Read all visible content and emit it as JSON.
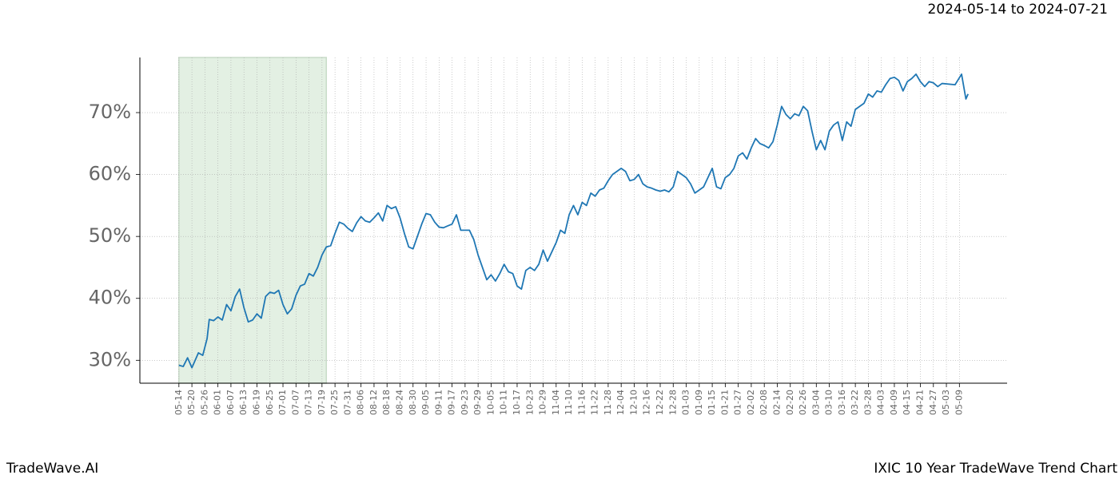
{
  "chart_data": {
    "type": "line",
    "date_range": "2024-05-14 to 2024-07-21",
    "brand": "TradeWave.AI",
    "title": "IXIC 10 Year TradeWave Trend Chart",
    "grid": true,
    "highlight": {
      "x": [
        0,
        68
      ],
      "color": "#e3f0e3"
    },
    "xlim": [
      -18,
      382
    ],
    "ylim": [
      26.3,
      78.9
    ],
    "yticks": [
      {
        "value": 30,
        "label": "30%"
      },
      {
        "value": 40,
        "label": "40%"
      },
      {
        "value": 50,
        "label": "50%"
      },
      {
        "value": 60,
        "label": "60%"
      },
      {
        "value": 70,
        "label": "70%"
      }
    ],
    "xticks": [
      {
        "value": 0,
        "label": "05-14"
      },
      {
        "value": 6,
        "label": "05-20"
      },
      {
        "value": 12,
        "label": "05-26"
      },
      {
        "value": 18,
        "label": "06-01"
      },
      {
        "value": 24,
        "label": "06-07"
      },
      {
        "value": 30,
        "label": "06-13"
      },
      {
        "value": 36,
        "label": "06-19"
      },
      {
        "value": 42,
        "label": "06-25"
      },
      {
        "value": 48,
        "label": "07-01"
      },
      {
        "value": 54,
        "label": "07-07"
      },
      {
        "value": 60,
        "label": "07-13"
      },
      {
        "value": 66,
        "label": "07-19"
      },
      {
        "value": 72,
        "label": "07-25"
      },
      {
        "value": 78,
        "label": "07-31"
      },
      {
        "value": 84,
        "label": "08-06"
      },
      {
        "value": 90,
        "label": "08-12"
      },
      {
        "value": 96,
        "label": "08-18"
      },
      {
        "value": 102,
        "label": "08-24"
      },
      {
        "value": 108,
        "label": "08-30"
      },
      {
        "value": 114,
        "label": "09-05"
      },
      {
        "value": 120,
        "label": "09-11"
      },
      {
        "value": 126,
        "label": "09-17"
      },
      {
        "value": 132,
        "label": "09-23"
      },
      {
        "value": 138,
        "label": "09-29"
      },
      {
        "value": 144,
        "label": "10-05"
      },
      {
        "value": 150,
        "label": "10-11"
      },
      {
        "value": 156,
        "label": "10-17"
      },
      {
        "value": 162,
        "label": "10-23"
      },
      {
        "value": 168,
        "label": "10-29"
      },
      {
        "value": 174,
        "label": "11-04"
      },
      {
        "value": 180,
        "label": "11-10"
      },
      {
        "value": 186,
        "label": "11-16"
      },
      {
        "value": 192,
        "label": "11-22"
      },
      {
        "value": 198,
        "label": "11-28"
      },
      {
        "value": 204,
        "label": "12-04"
      },
      {
        "value": 210,
        "label": "12-10"
      },
      {
        "value": 216,
        "label": "12-16"
      },
      {
        "value": 222,
        "label": "12-22"
      },
      {
        "value": 228,
        "label": "12-28"
      },
      {
        "value": 234,
        "label": "01-03"
      },
      {
        "value": 240,
        "label": "01-09"
      },
      {
        "value": 246,
        "label": "01-15"
      },
      {
        "value": 252,
        "label": "01-21"
      },
      {
        "value": 258,
        "label": "01-27"
      },
      {
        "value": 264,
        "label": "02-02"
      },
      {
        "value": 270,
        "label": "02-08"
      },
      {
        "value": 276,
        "label": "02-14"
      },
      {
        "value": 282,
        "label": "02-20"
      },
      {
        "value": 288,
        "label": "02-26"
      },
      {
        "value": 294,
        "label": "03-04"
      },
      {
        "value": 300,
        "label": "03-10"
      },
      {
        "value": 306,
        "label": "03-16"
      },
      {
        "value": 312,
        "label": "03-22"
      },
      {
        "value": 318,
        "label": "03-28"
      },
      {
        "value": 324,
        "label": "04-03"
      },
      {
        "value": 330,
        "label": "04-09"
      },
      {
        "value": 336,
        "label": "04-15"
      },
      {
        "value": 342,
        "label": "04-21"
      },
      {
        "value": 348,
        "label": "04-27"
      },
      {
        "value": 354,
        "label": "05-03"
      },
      {
        "value": 360,
        "label": "05-09"
      }
    ],
    "color": "#1f77b4",
    "x": [
      0,
      2,
      4,
      6,
      9,
      11,
      13,
      14,
      16,
      18,
      20,
      22,
      24,
      26,
      28,
      30,
      32,
      34,
      36,
      38,
      40,
      42,
      44,
      46,
      48,
      50,
      52,
      54,
      56,
      58,
      60,
      62,
      64,
      66,
      68,
      70,
      72,
      74,
      76,
      78,
      80,
      82,
      84,
      86,
      88,
      90,
      92,
      94,
      96,
      98,
      100,
      102,
      104,
      106,
      108,
      110,
      112,
      114,
      116,
      118,
      120,
      122,
      124,
      126,
      128,
      130,
      132,
      134,
      136,
      138,
      140,
      142,
      144,
      146,
      148,
      150,
      152,
      154,
      156,
      158,
      160,
      162,
      164,
      166,
      168,
      170,
      172,
      174,
      176,
      178,
      180,
      182,
      184,
      186,
      188,
      190,
      192,
      194,
      196,
      198,
      200,
      202,
      204,
      206,
      208,
      210,
      212,
      214,
      216,
      218,
      220,
      222,
      224,
      226,
      228,
      230,
      232,
      234,
      236,
      238,
      240,
      242,
      244,
      246,
      248,
      250,
      252,
      254,
      256,
      258,
      260,
      262,
      264,
      266,
      268,
      270,
      272,
      274,
      276,
      278,
      280,
      282,
      284,
      286,
      288,
      290,
      292,
      294,
      296,
      298,
      300,
      302,
      304,
      306,
      308,
      310,
      312,
      314,
      316,
      318,
      320,
      322,
      324,
      326,
      328,
      330,
      332,
      334,
      336,
      338,
      340,
      342,
      344,
      346,
      348,
      350,
      352,
      358,
      361,
      363,
      364
    ],
    "values": [
      29.2,
      29.0,
      30.4,
      28.8,
      31.2,
      30.8,
      33.5,
      36.6,
      36.4,
      37.0,
      36.5,
      39.0,
      38.0,
      40.3,
      41.5,
      38.5,
      36.2,
      36.5,
      37.5,
      36.8,
      40.3,
      41.0,
      40.8,
      41.3,
      39.0,
      37.5,
      38.3,
      40.5,
      42.0,
      42.3,
      44.0,
      43.6,
      45.0,
      47.0,
      48.3,
      48.5,
      50.5,
      52.3,
      52.0,
      51.3,
      50.8,
      52.2,
      53.2,
      52.5,
      52.3,
      53.0,
      53.8,
      52.5,
      55.0,
      54.5,
      54.8,
      53.0,
      50.5,
      48.3,
      48.0,
      50.0,
      52.0,
      53.7,
      53.5,
      52.3,
      51.5,
      51.4,
      51.7,
      52.0,
      53.5,
      51.0,
      51.0,
      51.0,
      49.5,
      47.0,
      45.0,
      43.0,
      43.8,
      42.8,
      44.0,
      45.5,
      44.3,
      44.0,
      42.0,
      41.5,
      44.5,
      45.0,
      44.5,
      45.5,
      47.8,
      46.0,
      47.5,
      49.0,
      51.0,
      50.5,
      53.5,
      55.0,
      53.5,
      55.5,
      55.0,
      57.0,
      56.5,
      57.5,
      57.8,
      59.0,
      60.0,
      60.5,
      61.0,
      60.5,
      59.0,
      59.2,
      60.0,
      58.5,
      58.0,
      57.8,
      57.5,
      57.3,
      57.5,
      57.2,
      58.0,
      60.5,
      60.0,
      59.5,
      58.5,
      57.0,
      57.5,
      58.0,
      59.5,
      61.0,
      58.0,
      57.7,
      59.5,
      60.0,
      61.0,
      63.0,
      63.5,
      62.5,
      64.3,
      65.8,
      65.0,
      64.7,
      64.3,
      65.3,
      68.0,
      71.0,
      69.7,
      69.0,
      69.8,
      69.5,
      71.0,
      70.3,
      67.0,
      64.0,
      65.5,
      64.0,
      67.0,
      68.0,
      68.5,
      65.5,
      68.5,
      67.8,
      70.5,
      71.0,
      71.5,
      73.0,
      72.5,
      73.5,
      73.3,
      74.5,
      75.5,
      75.7,
      75.2,
      73.5,
      75.0,
      75.5,
      76.2,
      75.0,
      74.2,
      75.0,
      74.8,
      74.2,
      74.7,
      74.5,
      76.2,
      72.2,
      73.0
    ]
  }
}
